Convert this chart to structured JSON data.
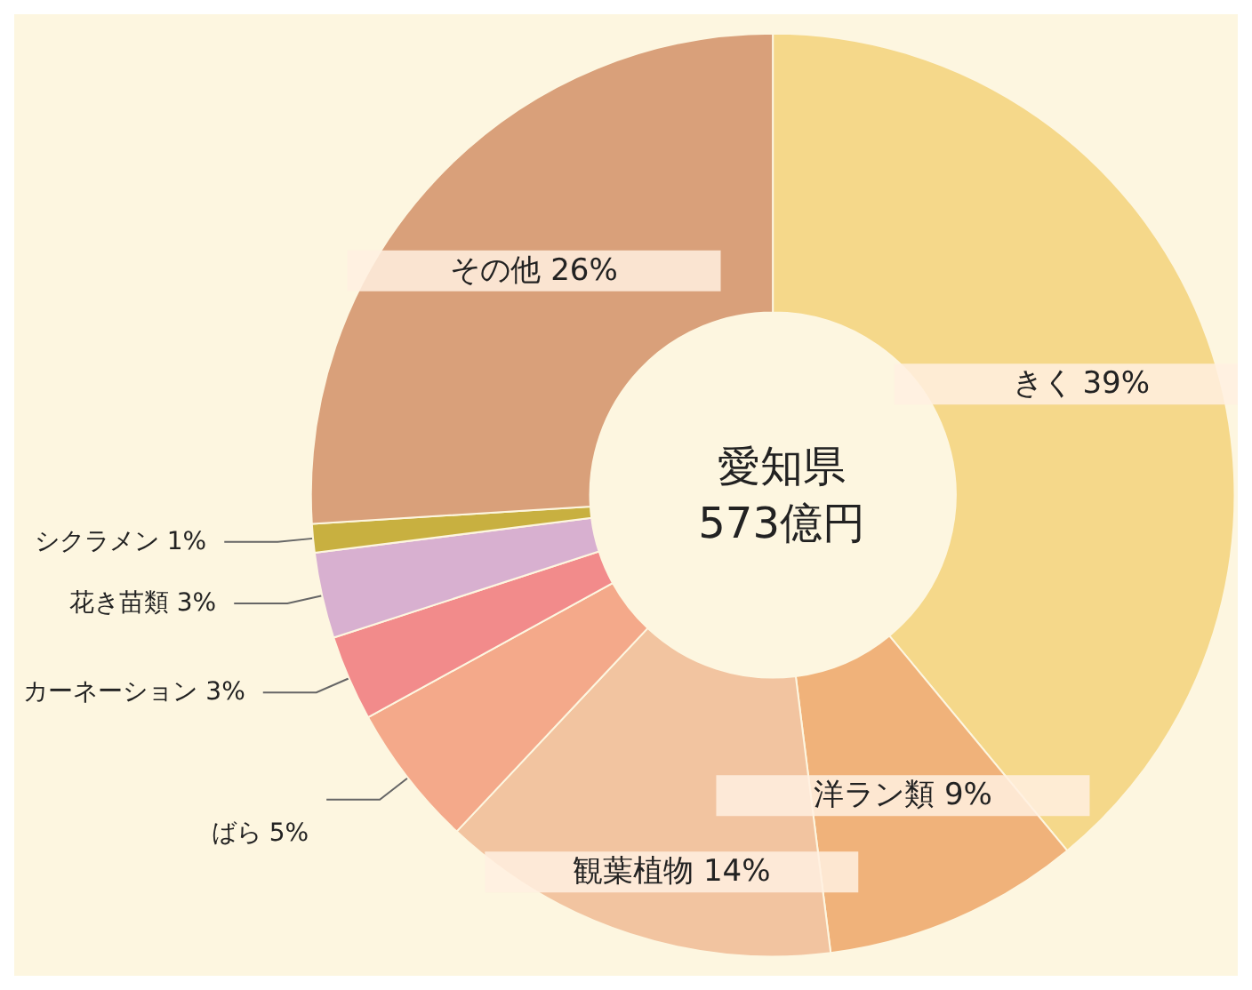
{
  "chart_data": {
    "type": "donut",
    "title": "愛知県\n573億円",
    "categories": [
      "きく",
      "洋ラン類",
      "観葉植物",
      "ばら",
      "カーネーション",
      "花き苗類",
      "シクラメン",
      "その他"
    ],
    "values": [
      39,
      9,
      14,
      5,
      3,
      3,
      1,
      26
    ],
    "value_labels": [
      "39%",
      "9%",
      "14%",
      "5%",
      "3%",
      "3%",
      "1%",
      "26%"
    ],
    "colors": [
      "#f5d88a",
      "#f0b27a",
      "#f2c4a0",
      "#f4a98a",
      "#f28b8b",
      "#d8b0d0",
      "#c8b040",
      "#d9a07a"
    ],
    "legend": false
  }
}
